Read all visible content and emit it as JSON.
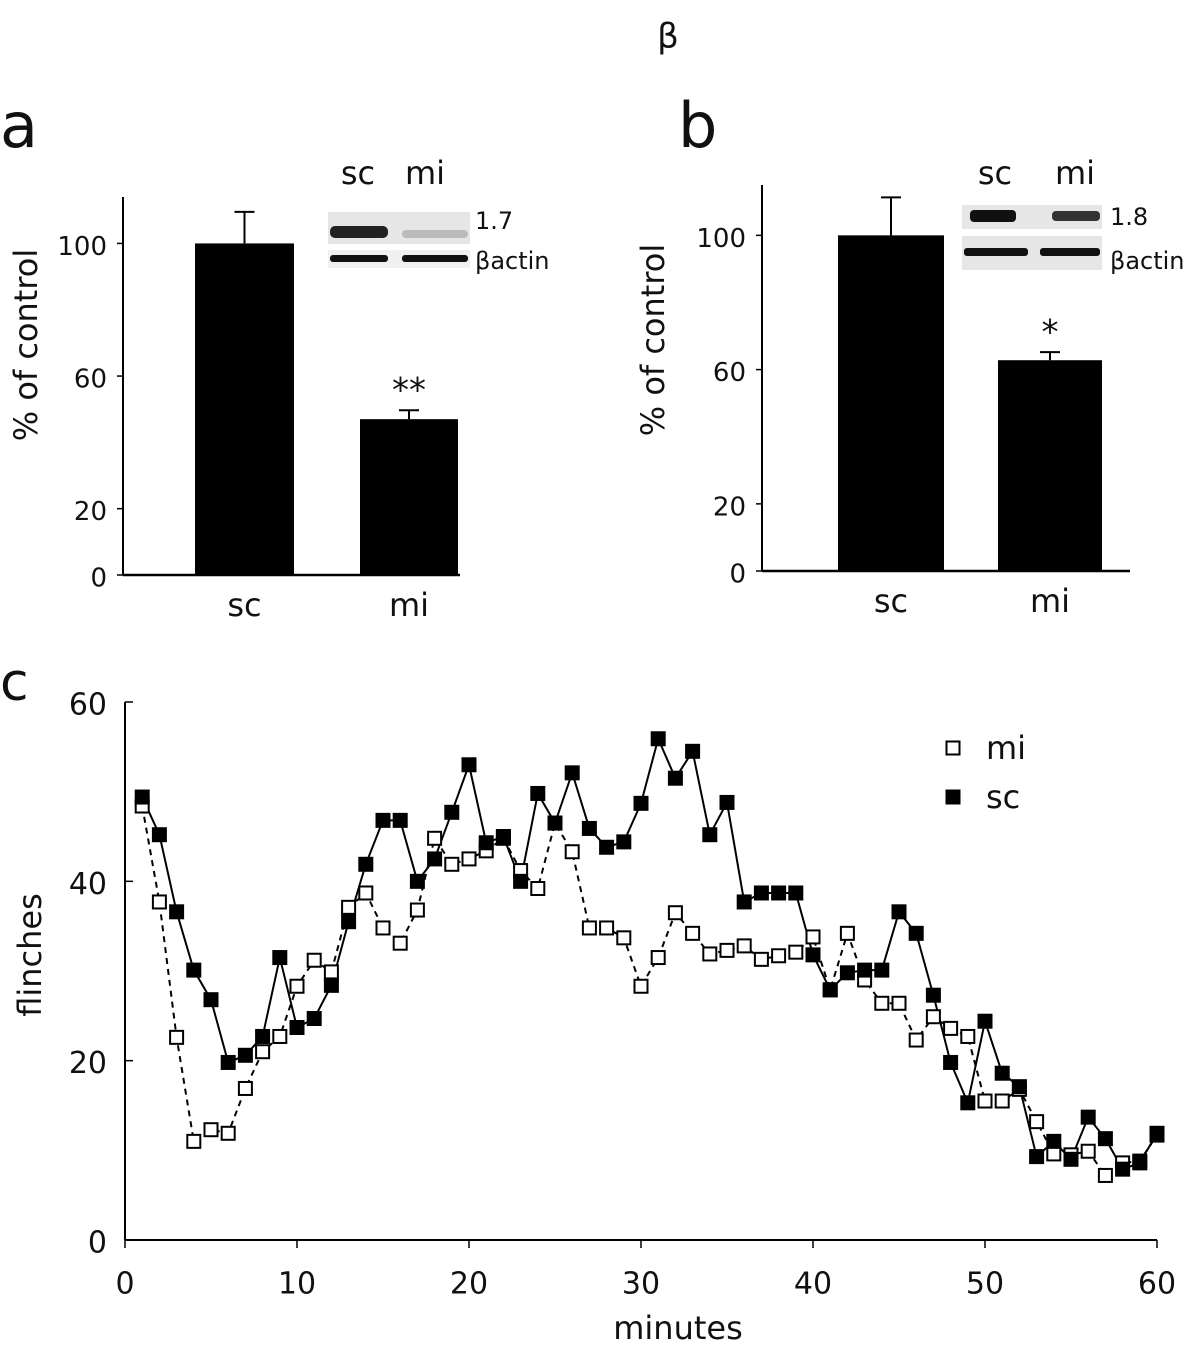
{
  "title": "β",
  "chart_data": [
    {
      "type": "bar",
      "panel_label": "a",
      "y_label": "% of control",
      "categories": [
        "sc",
        "mi"
      ],
      "values": [
        100,
        47
      ],
      "errors": [
        9.5,
        2.7
      ],
      "significance": [
        null,
        "**"
      ],
      "color": "#000000",
      "ylim": [
        0,
        114
      ],
      "yticks": [
        0,
        20,
        60,
        100
      ],
      "inset": {
        "lanes": [
          "sc",
          "mi"
        ],
        "ratio": "1.7",
        "reference": "βactin"
      }
    },
    {
      "type": "bar",
      "panel_label": "b",
      "y_label": "% of control",
      "categories": [
        "sc",
        "mi"
      ],
      "values": [
        100,
        62.8
      ],
      "errors": [
        11.3,
        2.4
      ],
      "significance": [
        null,
        "*"
      ],
      "color": "#000000",
      "ylim": [
        0,
        115
      ],
      "yticks": [
        0,
        20,
        60,
        100
      ],
      "inset": {
        "lanes": [
          "sc",
          "mi"
        ],
        "ratio": "1.8",
        "reference": "βactin"
      }
    },
    {
      "type": "line",
      "panel_label": "c",
      "x_label": "minutes",
      "y_label": "flinches",
      "x": [
        1,
        2,
        3,
        4,
        5,
        6,
        7,
        8,
        9,
        10,
        11,
        12,
        13,
        14,
        15,
        16,
        17,
        18,
        19,
        20,
        21,
        22,
        23,
        24,
        25,
        26,
        27,
        28,
        29,
        30,
        31,
        32,
        33,
        34,
        35,
        36,
        37,
        38,
        39,
        40,
        41,
        42,
        43,
        44,
        45,
        46,
        47,
        48,
        49,
        50,
        51,
        52,
        53,
        54,
        55,
        56,
        57,
        58,
        59,
        60
      ],
      "series": [
        {
          "name": "mi",
          "color": "#000000",
          "marker": "open",
          "line": "dashed",
          "values": [
            48.4,
            37.7,
            22.6,
            11.0,
            12.3,
            11.9,
            16.9,
            21.0,
            22.7,
            28.3,
            31.2,
            29.9,
            37.1,
            38.7,
            34.8,
            33.1,
            36.8,
            44.8,
            41.9,
            42.5,
            43.4,
            44.8,
            41.2,
            39.2,
            46.5,
            43.3,
            34.8,
            34.8,
            33.7,
            28.3,
            31.5,
            36.5,
            34.2,
            31.9,
            32.3,
            32.8,
            31.3,
            31.7,
            32.1,
            33.8,
            27.9,
            34.2,
            29.0,
            26.4,
            26.4,
            22.3,
            24.9,
            23.6,
            22.7,
            15.5,
            15.5,
            16.8,
            13.2,
            9.6,
            9.5,
            9.9,
            7.2,
            8.6,
            8.8,
            11.7
          ]
        },
        {
          "name": "sc",
          "color": "#000000",
          "marker": "filled",
          "line": "solid",
          "values": [
            49.4,
            45.2,
            36.6,
            30.1,
            26.8,
            19.8,
            20.6,
            22.7,
            31.5,
            23.7,
            24.7,
            28.4,
            35.5,
            41.9,
            46.8,
            46.8,
            40.0,
            42.5,
            47.7,
            53.0,
            44.3,
            45.0,
            40.0,
            49.8,
            46.5,
            52.1,
            45.9,
            43.8,
            44.4,
            48.7,
            55.9,
            51.5,
            54.5,
            45.2,
            48.8,
            37.7,
            38.7,
            38.7,
            38.7,
            31.8,
            27.9,
            29.8,
            30.1,
            30.1,
            36.6,
            34.2,
            27.3,
            19.8,
            15.3,
            24.4,
            18.6,
            17.1,
            9.3,
            11.0,
            9.0,
            13.7,
            11.3,
            7.9,
            8.6,
            11.9
          ]
        }
      ],
      "xlim": [
        0,
        60
      ],
      "xticks": [
        0,
        10,
        20,
        30,
        40,
        50,
        60
      ],
      "ylim": [
        0,
        60
      ],
      "yticks": [
        0,
        20,
        40,
        60
      ],
      "legend": "top-right"
    }
  ]
}
